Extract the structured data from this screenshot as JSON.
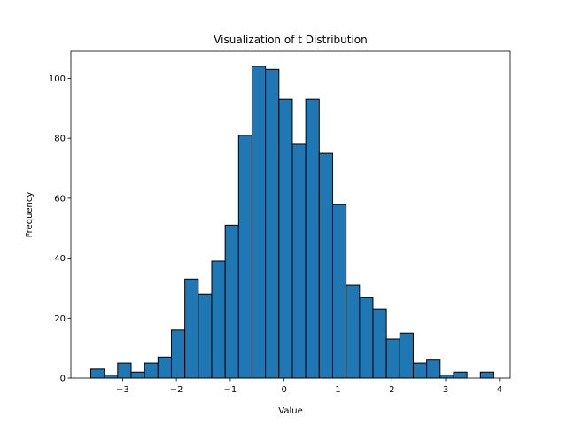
{
  "chart_data": {
    "type": "bar",
    "title": "Visualization of t Distribution",
    "xlabel": "Value",
    "ylabel": "Frequency",
    "bin_start": -3.59,
    "bin_width": 0.2495,
    "values": [
      3,
      1,
      5,
      2,
      5,
      7,
      16,
      33,
      28,
      39,
      51,
      81,
      104,
      103,
      93,
      78,
      93,
      75,
      58,
      31,
      27,
      23,
      13,
      15,
      5,
      6,
      1,
      2,
      0,
      2
    ],
    "xlim": [
      -3.96,
      4.2
    ],
    "ylim": [
      0,
      109
    ],
    "xticks": [
      -3,
      -2,
      -1,
      0,
      1,
      2,
      3,
      4
    ],
    "xtick_labels": [
      "−3",
      "−2",
      "−1",
      "0",
      "1",
      "2",
      "3",
      "4"
    ],
    "yticks": [
      0,
      20,
      40,
      60,
      80,
      100
    ],
    "ytick_labels": [
      "0",
      "20",
      "40",
      "60",
      "80",
      "100"
    ],
    "bar_color": "#1f77b4",
    "edge_color": "#000000",
    "grid": false,
    "legend": false
  }
}
